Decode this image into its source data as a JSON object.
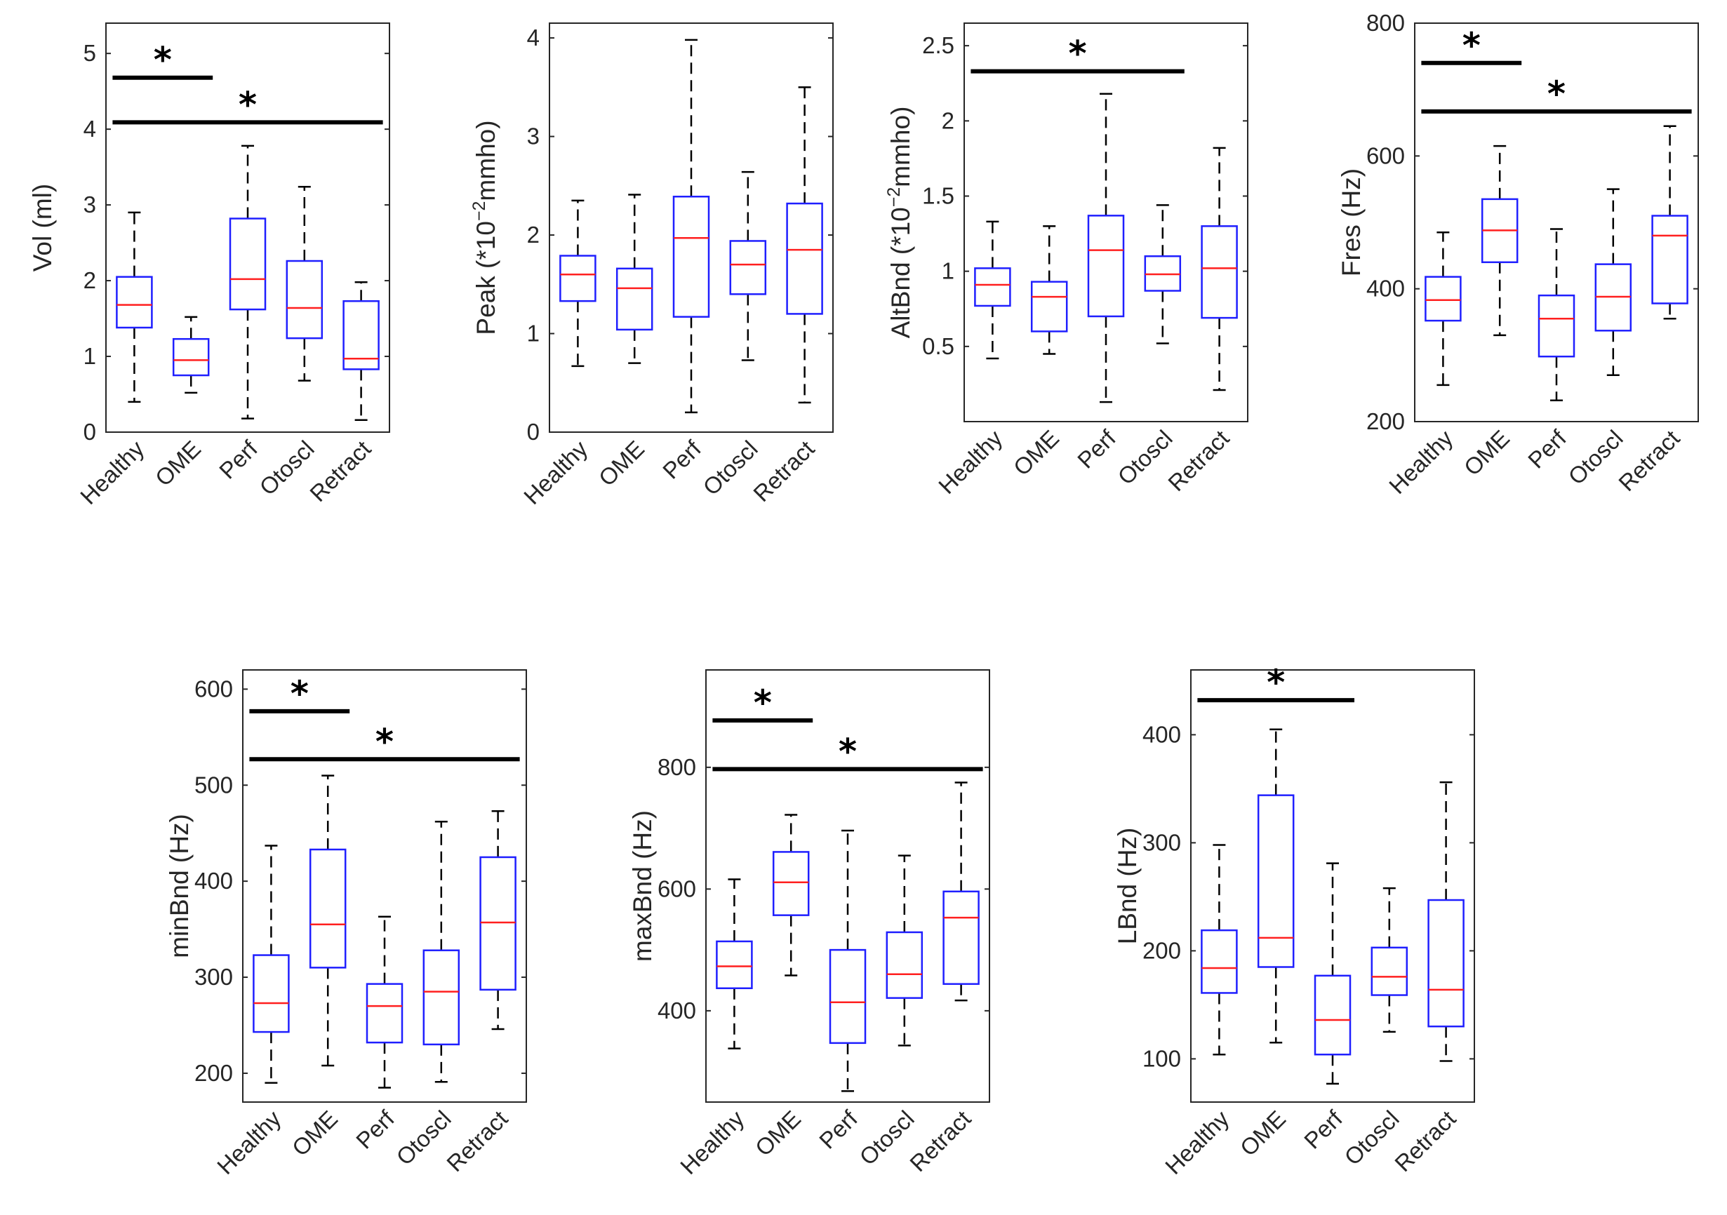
{
  "chart_data": [
    {
      "type": "boxplot",
      "id": "vol",
      "ylabel": "Vol (ml)",
      "ylim": [
        0,
        5.4
      ],
      "yticks": [
        0,
        1,
        2,
        3,
        4,
        5
      ],
      "categories": [
        "Healthy",
        "OME",
        "Perf",
        "Otoscl",
        "Retract"
      ],
      "boxes": [
        {
          "min": 0.4,
          "q1": 1.38,
          "median": 1.68,
          "q3": 2.05,
          "max": 2.9
        },
        {
          "min": 0.52,
          "q1": 0.75,
          "median": 0.95,
          "q3": 1.23,
          "max": 1.52
        },
        {
          "min": 0.18,
          "q1": 1.62,
          "median": 2.02,
          "q3": 2.82,
          "max": 3.78
        },
        {
          "min": 0.68,
          "q1": 1.24,
          "median": 1.64,
          "q3": 2.26,
          "max": 3.24
        },
        {
          "min": 0.16,
          "q1": 0.83,
          "median": 0.97,
          "q3": 1.73,
          "max": 1.98
        }
      ],
      "significance": [
        {
          "from": 0,
          "to": 1,
          "y": 4.68,
          "label": "*"
        },
        {
          "from": 0,
          "to": 4,
          "y": 4.09,
          "label": "*"
        }
      ]
    },
    {
      "type": "boxplot",
      "id": "peak",
      "ylabel": "Peak (*10",
      "ylabel_sup": "−2",
      "ylabel_tail": "mmho)",
      "ylim": [
        0,
        4.15
      ],
      "yticks": [
        0,
        1,
        2,
        3,
        4
      ],
      "categories": [
        "Healthy",
        "OME",
        "Perf",
        "Otoscl",
        "Retract"
      ],
      "boxes": [
        {
          "min": 0.67,
          "q1": 1.33,
          "median": 1.6,
          "q3": 1.79,
          "max": 2.35
        },
        {
          "min": 0.7,
          "q1": 1.04,
          "median": 1.46,
          "q3": 1.66,
          "max": 2.41
        },
        {
          "min": 0.2,
          "q1": 1.17,
          "median": 1.97,
          "q3": 2.39,
          "max": 3.98
        },
        {
          "min": 0.73,
          "q1": 1.4,
          "median": 1.7,
          "q3": 1.94,
          "max": 2.64
        },
        {
          "min": 0.3,
          "q1": 1.2,
          "median": 1.85,
          "q3": 2.32,
          "max": 3.5
        }
      ],
      "significance": []
    },
    {
      "type": "boxplot",
      "id": "altbnd",
      "ylabel": "AltBnd (*10",
      "ylabel_sup": "−2",
      "ylabel_tail": "mmho)",
      "ylim": [
        0,
        2.65
      ],
      "yticks": [
        0.5,
        1,
        1.5,
        2,
        2.5
      ],
      "categories": [
        "Healthy",
        "OME",
        "Perf",
        "Otoscl",
        "Retract"
      ],
      "boxes": [
        {
          "min": 0.42,
          "q1": 0.77,
          "median": 0.91,
          "q3": 1.02,
          "max": 1.33
        },
        {
          "min": 0.45,
          "q1": 0.6,
          "median": 0.83,
          "q3": 0.93,
          "max": 1.3
        },
        {
          "min": 0.13,
          "q1": 0.7,
          "median": 1.14,
          "q3": 1.37,
          "max": 2.18
        },
        {
          "min": 0.52,
          "q1": 0.87,
          "median": 0.98,
          "q3": 1.1,
          "max": 1.44
        },
        {
          "min": 0.21,
          "q1": 0.69,
          "median": 1.02,
          "q3": 1.3,
          "max": 1.82
        }
      ],
      "significance": [
        {
          "from": 0,
          "to": 3,
          "y": 2.33,
          "label": "*"
        }
      ]
    },
    {
      "type": "boxplot",
      "id": "fres",
      "ylabel": "Fres (Hz)",
      "ylim": [
        200,
        800
      ],
      "yticks": [
        200,
        400,
        600,
        800
      ],
      "categories": [
        "Healthy",
        "OME",
        "Perf",
        "Otoscl",
        "Retract"
      ],
      "boxes": [
        {
          "min": 255,
          "q1": 352,
          "median": 383,
          "q3": 418,
          "max": 485
        },
        {
          "min": 330,
          "q1": 440,
          "median": 488,
          "q3": 535,
          "max": 615
        },
        {
          "min": 232,
          "q1": 298,
          "median": 355,
          "q3": 390,
          "max": 490
        },
        {
          "min": 270,
          "q1": 337,
          "median": 388,
          "q3": 437,
          "max": 550
        },
        {
          "min": 355,
          "q1": 378,
          "median": 480,
          "q3": 510,
          "max": 645
        }
      ],
      "significance": [
        {
          "from": 0,
          "to": 1,
          "y": 740,
          "label": "*"
        },
        {
          "from": 0,
          "to": 4,
          "y": 667,
          "label": "*"
        }
      ]
    },
    {
      "type": "boxplot",
      "id": "minbnd",
      "ylabel": "minBnd (Hz)",
      "ylim": [
        170,
        620
      ],
      "yticks": [
        200,
        300,
        400,
        500,
        600
      ],
      "categories": [
        "Healthy",
        "OME",
        "Perf",
        "Otoscl",
        "Retract"
      ],
      "boxes": [
        {
          "min": 190,
          "q1": 243,
          "median": 273,
          "q3": 323,
          "max": 437
        },
        {
          "min": 208,
          "q1": 310,
          "median": 355,
          "q3": 433,
          "max": 510
        },
        {
          "min": 185,
          "q1": 232,
          "median": 270,
          "q3": 293,
          "max": 363
        },
        {
          "min": 191,
          "q1": 230,
          "median": 285,
          "q3": 328,
          "max": 462
        },
        {
          "min": 246,
          "q1": 287,
          "median": 357,
          "q3": 425,
          "max": 473
        }
      ],
      "significance": [
        {
          "from": 0,
          "to": 1,
          "y": 577,
          "label": "*"
        },
        {
          "from": 0,
          "to": 4,
          "y": 527,
          "label": "*"
        }
      ]
    },
    {
      "type": "boxplot",
      "id": "maxbnd",
      "ylabel": "maxBnd (Hz)",
      "ylim": [
        250,
        960
      ],
      "yticks": [
        400,
        600,
        800
      ],
      "categories": [
        "Healthy",
        "OME",
        "Perf",
        "Otoscl",
        "Retract"
      ],
      "boxes": [
        {
          "min": 338,
          "q1": 437,
          "median": 473,
          "q3": 514,
          "max": 616
        },
        {
          "min": 458,
          "q1": 557,
          "median": 611,
          "q3": 661,
          "max": 722
        },
        {
          "min": 268,
          "q1": 347,
          "median": 414,
          "q3": 500,
          "max": 696
        },
        {
          "min": 343,
          "q1": 421,
          "median": 460,
          "q3": 529,
          "max": 655
        },
        {
          "min": 417,
          "q1": 444,
          "median": 553,
          "q3": 596,
          "max": 775
        }
      ],
      "significance": [
        {
          "from": 0,
          "to": 1,
          "y": 877,
          "label": "*"
        },
        {
          "from": 0,
          "to": 4,
          "y": 797,
          "label": "*"
        }
      ]
    },
    {
      "type": "boxplot",
      "id": "lbnd",
      "ylabel": "LBnd (Hz)",
      "ylim": [
        60,
        460
      ],
      "yticks": [
        100,
        200,
        300,
        400
      ],
      "categories": [
        "Healthy",
        "OME",
        "Perf",
        "Otoscl",
        "Retract"
      ],
      "boxes": [
        {
          "min": 104,
          "q1": 161,
          "median": 184,
          "q3": 219,
          "max": 298
        },
        {
          "min": 115,
          "q1": 185,
          "median": 212,
          "q3": 344,
          "max": 405
        },
        {
          "min": 77,
          "q1": 104,
          "median": 136,
          "q3": 177,
          "max": 281
        },
        {
          "min": 125,
          "q1": 159,
          "median": 176,
          "q3": 203,
          "max": 258
        },
        {
          "min": 98,
          "q1": 130,
          "median": 164,
          "q3": 247,
          "max": 356
        }
      ],
      "significance": [
        {
          "from": 0,
          "to": 2,
          "y": 432,
          "label": "*"
        }
      ]
    }
  ]
}
